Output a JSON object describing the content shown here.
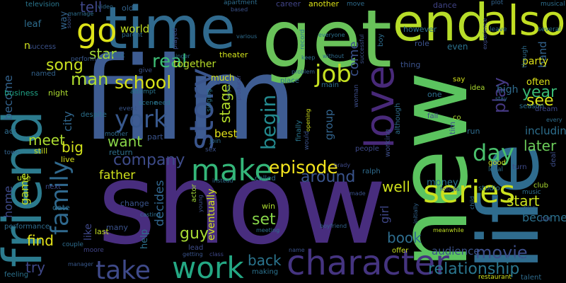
{
  "background": "#000000",
  "words": [
    {
      "text": "film",
      "color": "#3e5c92"
    },
    {
      "text": "show",
      "color": "#482d7e"
    },
    {
      "text": "new",
      "color": "#5bc35f"
    },
    {
      "text": "life",
      "color": "#2f6c8e"
    },
    {
      "text": "get",
      "color": "#69c25a"
    },
    {
      "text": "time",
      "color": "#306a8e"
    },
    {
      "text": "friend",
      "color": "#2c7b8e"
    },
    {
      "text": "end",
      "color": "#b7dd29"
    },
    {
      "text": "also",
      "color": "#c2df23"
    },
    {
      "text": "love",
      "color": "#482979"
    },
    {
      "text": "character",
      "color": "#453480"
    },
    {
      "text": "go",
      "color": "#dde318"
    },
    {
      "text": "story",
      "color": "#3a558c"
    },
    {
      "text": "make",
      "color": "#34b679"
    },
    {
      "text": "work",
      "color": "#24a884"
    },
    {
      "text": "series",
      "color": "#cbe11e"
    },
    {
      "text": "take",
      "color": "#3f4a8a"
    },
    {
      "text": "family",
      "color": "#30698e"
    },
    {
      "text": "job",
      "color": "#c5e021"
    },
    {
      "text": "york",
      "color": "#38588c"
    },
    {
      "text": "school",
      "color": "#d8e219"
    },
    {
      "text": "day",
      "color": "#4ac16d"
    },
    {
      "text": "begin",
      "color": "#23898e"
    },
    {
      "text": "episode",
      "color": "#f3e51e"
    },
    {
      "text": "around",
      "color": "#3a548c"
    },
    {
      "text": "relationship",
      "color": "#2a768e"
    },
    {
      "text": "movie",
      "color": "#3d4e8a"
    },
    {
      "text": "song",
      "color": "#c8e020"
    },
    {
      "text": "real",
      "color": "#3dbc74"
    },
    {
      "text": "man",
      "color": "#b0dd2f"
    },
    {
      "text": "company",
      "color": "#3e4c8a"
    },
    {
      "text": "year",
      "color": "#3aba76"
    },
    {
      "text": "see",
      "color": "#dae319"
    },
    {
      "text": "play",
      "color": "#453882"
    },
    {
      "text": "want",
      "color": "#89d548"
    },
    {
      "text": "later",
      "color": "#6ccd5a"
    },
    {
      "text": "start",
      "color": "#cae11f"
    },
    {
      "text": "well",
      "color": "#d0e11c"
    },
    {
      "text": "guy",
      "color": "#a8db34"
    },
    {
      "text": "set",
      "color": "#87d549"
    },
    {
      "text": "book",
      "color": "#2e6d8e"
    },
    {
      "text": "back",
      "color": "#2b758e"
    },
    {
      "text": "find",
      "color": "#e5e419"
    },
    {
      "text": "try",
      "color": "#3f4889"
    },
    {
      "text": "meet",
      "color": "#addc30"
    },
    {
      "text": "big",
      "color": "#d2e21b"
    },
    {
      "text": "tell",
      "color": "#3f4788"
    },
    {
      "text": "star",
      "color": "#a5db36"
    },
    {
      "text": "stage",
      "color": "#b5de2b"
    },
    {
      "text": "come",
      "color": "#3b528b"
    },
    {
      "text": "become",
      "color": "#33638d"
    },
    {
      "text": "game",
      "color": "#c0df25"
    },
    {
      "text": "home",
      "color": "#3e4a89"
    },
    {
      "text": "father",
      "color": "#cfe11c"
    },
    {
      "text": "decides",
      "color": "#31668e"
    },
    {
      "text": "becomes",
      "color": "#2c718e"
    },
    {
      "text": "audience",
      "color": "#3b528b"
    },
    {
      "text": "girl",
      "color": "#3f4788"
    },
    {
      "text": "city",
      "color": "#31678e"
    },
    {
      "text": "world",
      "color": "#c2df23"
    },
    {
      "text": "best",
      "color": "#e5e419"
    },
    {
      "text": "together",
      "color": "#b8de29"
    },
    {
      "text": "including",
      "color": "#2e6f8e"
    },
    {
      "text": "group",
      "color": "#32648e"
    },
    {
      "text": "band",
      "color": "#33638d"
    },
    {
      "text": "party",
      "color": "#dfe318"
    },
    {
      "text": "high",
      "color": "#2f6c8e"
    },
    {
      "text": "often",
      "color": "#dde318"
    },
    {
      "text": "like",
      "color": "#3f4889"
    },
    {
      "text": "eventually",
      "color": "#d2e21b"
    },
    {
      "text": "money",
      "color": "#2c718e"
    },
    {
      "text": "help",
      "color": "#2d708e"
    },
    {
      "text": "career",
      "color": "#414487"
    },
    {
      "text": "however",
      "color": "#2d708e"
    },
    {
      "text": "another",
      "color": "#dde318"
    },
    {
      "text": "dance",
      "color": "#414487"
    },
    {
      "text": "role",
      "color": "#3b528b"
    },
    {
      "text": "even",
      "color": "#2c728e"
    },
    {
      "text": "leaf",
      "color": "#2e6d8e"
    },
    {
      "text": "way",
      "color": "#33638d"
    },
    {
      "text": "television",
      "color": "#2a768e"
    },
    {
      "text": "success",
      "color": "#3b528b"
    },
    {
      "text": "business",
      "color": "#20a386"
    },
    {
      "text": "night",
      "color": "#addc30"
    },
    {
      "text": "named",
      "color": "#33638d"
    },
    {
      "text": "theater",
      "color": "#d0e11c"
    },
    {
      "text": "break",
      "color": "#2e6d8e"
    },
    {
      "text": "perform",
      "color": "#38588c"
    },
    {
      "text": "despite",
      "color": "#2c718e"
    },
    {
      "text": "mother",
      "color": "#2f6c8e"
    },
    {
      "text": "attempt",
      "color": "#2a768e"
    },
    {
      "text": "event",
      "color": "#39568c"
    },
    {
      "text": "need",
      "color": "#2c738e"
    },
    {
      "text": "part",
      "color": "#3a548c"
    },
    {
      "text": "return",
      "color": "#2e6f8e"
    },
    {
      "text": "still",
      "color": "#c8e020"
    },
    {
      "text": "live",
      "color": "#d8e219"
    },
    {
      "text": "act",
      "color": "#2f6c8e"
    },
    {
      "text": "town",
      "color": "#33638d"
    },
    {
      "text": "use",
      "color": "#bddf26"
    },
    {
      "text": "next",
      "color": "#3e4a89"
    },
    {
      "text": "date",
      "color": "#2e6f8e"
    },
    {
      "text": "change",
      "color": "#3a548c"
    },
    {
      "text": "many",
      "color": "#3b528b"
    },
    {
      "text": "last",
      "color": "#c2df23"
    },
    {
      "text": "performance",
      "color": "#2f6c8e"
    },
    {
      "text": "couple",
      "color": "#2e6d8e"
    },
    {
      "text": "moore",
      "color": "#414487"
    },
    {
      "text": "manager",
      "color": "#38588c"
    },
    {
      "text": "feeling",
      "color": "#2c728e"
    },
    {
      "text": "lead",
      "color": "#3e4c8a"
    },
    {
      "text": "actor",
      "color": "#a2da37"
    },
    {
      "text": "young",
      "color": "#3d4e8a"
    },
    {
      "text": "making",
      "color": "#2c728e"
    },
    {
      "text": "getting",
      "color": "#3a548c"
    },
    {
      "text": "class",
      "color": "#3f4889"
    },
    {
      "text": "meeting",
      "color": "#2e6f8e"
    },
    {
      "text": "win",
      "color": "#addc30"
    },
    {
      "text": "name",
      "color": "#3b528b"
    },
    {
      "text": "called",
      "color": "#2e6d8e"
    },
    {
      "text": "ralph",
      "color": "#2f6c8e"
    },
    {
      "text": "people",
      "color": "#3e4a89"
    },
    {
      "text": "working",
      "color": "#3d4e8a"
    },
    {
      "text": "although",
      "color": "#2e6f8e"
    },
    {
      "text": "finally",
      "color": "#2a768e"
    },
    {
      "text": "would",
      "color": "#3b528b"
    },
    {
      "text": "opening",
      "color": "#d2e21b"
    },
    {
      "text": "offer",
      "color": "#c8e020"
    },
    {
      "text": "boyfriend",
      "color": "#33638d"
    },
    {
      "text": "interest",
      "color": "#2e6d8e"
    },
    {
      "text": "restaurant",
      "color": "#d0e11c"
    },
    {
      "text": "talent",
      "color": "#2f6c8e"
    },
    {
      "text": "meanwhile",
      "color": "#c2df23"
    },
    {
      "text": "follows",
      "color": "#3e4a89"
    },
    {
      "text": "initially",
      "color": "#33638d"
    },
    {
      "text": "made",
      "color": "#3b528b"
    },
    {
      "text": "studio",
      "color": "#2a768e"
    },
    {
      "text": "music",
      "color": "#2e6d8e"
    },
    {
      "text": "club",
      "color": "#addc30"
    },
    {
      "text": "turn",
      "color": "#3e4a89"
    },
    {
      "text": "local",
      "color": "#2e6f8e"
    },
    {
      "text": "good",
      "color": "#c8e020"
    },
    {
      "text": "bar",
      "color": "#3b528b"
    },
    {
      "text": "plan",
      "color": "#33638d"
    },
    {
      "text": "deal",
      "color": "#3d4e8a"
    },
    {
      "text": "child",
      "color": "#2e6d8e"
    },
    {
      "text": "run",
      "color": "#2f6c8e"
    },
    {
      "text": "idea",
      "color": "#addc30"
    },
    {
      "text": "say",
      "color": "#d2e21b"
    },
    {
      "text": "season",
      "color": "#2c718e"
    },
    {
      "text": "dream",
      "color": "#3e4a89"
    },
    {
      "text": "every",
      "color": "#2e6d8e"
    },
    {
      "text": "stay",
      "color": "#2f6c8e"
    },
    {
      "text": "tim",
      "color": "#3b528b"
    },
    {
      "text": "musical",
      "color": "#2e6f8e"
    },
    {
      "text": "several",
      "color": "#2a768e"
    },
    {
      "text": "though",
      "color": "#2e6d8e"
    },
    {
      "text": "plot",
      "color": "#33638d"
    },
    {
      "text": "leave",
      "color": "#2f6c8e"
    },
    {
      "text": "experience",
      "color": "#3d4e8a"
    },
    {
      "text": "thing",
      "color": "#3b528b"
    },
    {
      "text": "one",
      "color": "#2e6f8e"
    },
    {
      "text": "fall",
      "color": "#3e4a89"
    },
    {
      "text": "co",
      "color": "#addc30"
    },
    {
      "text": "boy",
      "color": "#2e6d8e"
    },
    {
      "text": "move",
      "color": "#2f6c8e"
    },
    {
      "text": "successful",
      "color": "#3b528b"
    },
    {
      "text": "everyone",
      "color": "#2c718e"
    },
    {
      "text": "keep",
      "color": "#2e6d8e"
    },
    {
      "text": "without",
      "color": "#2f6c8e"
    },
    {
      "text": "problem",
      "color": "#33638d"
    },
    {
      "text": "main",
      "color": "#2e6f8e"
    },
    {
      "text": "woman",
      "color": "#3d4e8a"
    },
    {
      "text": "record",
      "color": "#2a768e"
    },
    {
      "text": "apartment",
      "color": "#2e6d8e"
    },
    {
      "text": "based",
      "color": "#3b528b"
    },
    {
      "text": "various",
      "color": "#2f6c8e"
    },
    {
      "text": "producer",
      "color": "#3e4a89"
    },
    {
      "text": "place",
      "color": "#2e6f8e"
    },
    {
      "text": "angle",
      "color": "#33638d"
    },
    {
      "text": "singing",
      "color": "#2a768e"
    },
    {
      "text": "sex",
      "color": "#3b528b"
    },
    {
      "text": "instead",
      "color": "#2f6c8e"
    },
    {
      "text": "join",
      "color": "#2e6d8e"
    },
    {
      "text": "played",
      "color": "#3d4e8a"
    },
    {
      "text": "singer",
      "color": "#2e6f8e"
    },
    {
      "text": "give",
      "color": "#3b528b"
    },
    {
      "text": "scene",
      "color": "#2a768e"
    },
    {
      "text": "parent",
      "color": "#2e6d8e"
    },
    {
      "text": "old",
      "color": "#33638d"
    },
    {
      "text": "video",
      "color": "#2f6c8e"
    },
    {
      "text": "marriage",
      "color": "#2e6f8e"
    },
    {
      "text": "soon",
      "color": "#3b528b"
    },
    {
      "text": "n",
      "color": "#d0e11c"
    },
    {
      "text": "brady",
      "color": "#3e4a89"
    },
    {
      "text": "much",
      "color": "#d2e21b"
    },
    {
      "text": "casting",
      "color": "#2e6d8e"
    }
  ]
}
